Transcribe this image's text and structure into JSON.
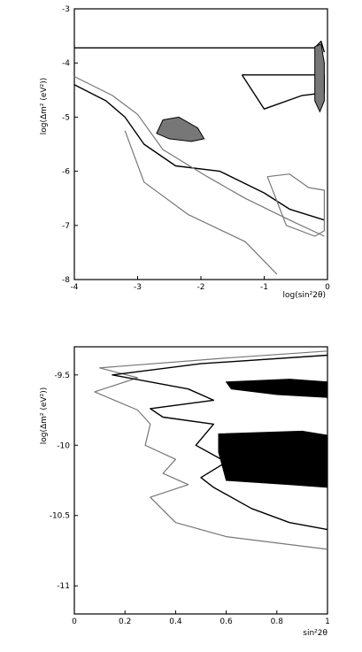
{
  "chart_data": [
    {
      "type": "contour",
      "xlabel": "log(sin²2θ)",
      "ylabel": "log(Δm² (eV²))",
      "xlim": [
        -4,
        0
      ],
      "ylim": [
        -8,
        -3
      ],
      "xticks": [
        -4,
        -3,
        -2,
        -1,
        0
      ],
      "yticks": [
        -3,
        -4,
        -5,
        -6,
        -7,
        -8
      ],
      "xtick_labels": [
        "-4",
        "-3",
        "-2",
        "-1",
        "0"
      ],
      "ytick_labels": [
        "-3",
        "-4",
        "-5",
        "-6",
        "-7",
        "-8"
      ],
      "grid": false,
      "contours": [
        {
          "kind": "line",
          "color": "#000000",
          "points": [
            [
              -4,
              -3.72
            ],
            [
              -0.2,
              -3.72
            ],
            [
              -0.1,
              -3.6
            ],
            [
              -0.05,
              -3.8
            ]
          ]
        },
        {
          "kind": "line",
          "color": "#000000",
          "points": [
            [
              -1.35,
              -4.22
            ],
            [
              -0.05,
              -4.22
            ],
            [
              -0.05,
              -4.55
            ],
            [
              -0.4,
              -4.6
            ],
            [
              -1,
              -4.85
            ],
            [
              -1.35,
              -4.22
            ]
          ]
        },
        {
          "kind": "line",
          "color": "#000000",
          "points": [
            [
              -4,
              -4.4
            ],
            [
              -3.5,
              -4.7
            ],
            [
              -3.2,
              -5.0
            ],
            [
              -2.9,
              -5.5
            ],
            [
              -2.4,
              -5.9
            ],
            [
              -1.7,
              -6.0
            ],
            [
              -1.0,
              -6.4
            ],
            [
              -0.6,
              -6.7
            ],
            [
              -0.05,
              -6.9
            ]
          ]
        },
        {
          "kind": "line",
          "color": "#777777",
          "points": [
            [
              -4,
              -4.25
            ],
            [
              -3.4,
              -4.6
            ],
            [
              -3.0,
              -4.95
            ],
            [
              -2.6,
              -5.6
            ],
            [
              -1.9,
              -6.1
            ],
            [
              -1.3,
              -6.5
            ],
            [
              -0.6,
              -6.9
            ],
            [
              -0.05,
              -7.2
            ]
          ]
        },
        {
          "kind": "line",
          "color": "#777777",
          "points": [
            [
              -3.2,
              -5.25
            ],
            [
              -2.9,
              -6.2
            ],
            [
              -2.2,
              -6.8
            ],
            [
              -1.3,
              -7.3
            ],
            [
              -0.8,
              -7.9
            ]
          ]
        },
        {
          "kind": "line",
          "color": "#777777",
          "points": [
            [
              -0.95,
              -6.1
            ],
            [
              -0.6,
              -6.05
            ],
            [
              -0.3,
              -6.3
            ],
            [
              -0.05,
              -6.35
            ],
            [
              -0.05,
              -7.1
            ],
            [
              -0.2,
              -7.2
            ],
            [
              -0.65,
              -7.0
            ],
            [
              -0.95,
              -6.1
            ]
          ]
        },
        {
          "kind": "fill",
          "color": "#777777",
          "points": [
            [
              -2.6,
              -5.05
            ],
            [
              -2.35,
              -5.0
            ],
            [
              -2.05,
              -5.2
            ],
            [
              -1.95,
              -5.4
            ],
            [
              -2.15,
              -5.45
            ],
            [
              -2.5,
              -5.4
            ],
            [
              -2.7,
              -5.3
            ],
            [
              -2.6,
              -5.05
            ]
          ]
        },
        {
          "kind": "fill",
          "color": "#777777",
          "points": [
            [
              -0.2,
              -3.7
            ],
            [
              -0.1,
              -3.65
            ],
            [
              -0.05,
              -4.0
            ],
            [
              -0.05,
              -4.7
            ],
            [
              -0.12,
              -4.9
            ],
            [
              -0.2,
              -4.7
            ],
            [
              -0.2,
              -3.7
            ]
          ]
        }
      ]
    },
    {
      "type": "contour",
      "xlabel": "sin²2θ",
      "ylabel": "log(Δm² (eV²))",
      "xlim": [
        0,
        1
      ],
      "ylim": [
        -11.2,
        -9.3
      ],
      "xticks": [
        0,
        0.2,
        0.4,
        0.6,
        0.8,
        1
      ],
      "yticks": [
        -9.5,
        -10,
        -10.5,
        -11
      ],
      "xtick_labels": [
        "0",
        "0.2",
        "0.4",
        "0.6",
        "0.8",
        "1"
      ],
      "ytick_labels": [
        "-9.5",
        "-10",
        "-10.5",
        "-11"
      ],
      "grid": false,
      "contours": [
        {
          "kind": "line",
          "color": "#777777",
          "points": [
            [
              1,
              -9.33
            ],
            [
              0.6,
              -9.38
            ],
            [
              0.1,
              -9.45
            ],
            [
              0.25,
              -9.52
            ],
            [
              0.08,
              -9.62
            ],
            [
              0.25,
              -9.75
            ],
            [
              0.3,
              -9.85
            ],
            [
              0.28,
              -10.0
            ],
            [
              0.4,
              -10.1
            ],
            [
              0.35,
              -10.2
            ],
            [
              0.45,
              -10.28
            ],
            [
              0.3,
              -10.37
            ],
            [
              0.4,
              -10.55
            ],
            [
              0.6,
              -10.65
            ],
            [
              1,
              -10.74
            ]
          ]
        },
        {
          "kind": "line",
          "color": "#000000",
          "points": [
            [
              1,
              -9.36
            ],
            [
              0.5,
              -9.42
            ],
            [
              0.15,
              -9.5
            ],
            [
              0.45,
              -9.6
            ],
            [
              0.55,
              -9.68
            ],
            [
              0.3,
              -9.74
            ],
            [
              0.35,
              -9.8
            ],
            [
              0.55,
              -9.85
            ],
            [
              0.48,
              -10.0
            ],
            [
              0.6,
              -10.12
            ],
            [
              0.5,
              -10.23
            ],
            [
              0.55,
              -10.3
            ],
            [
              0.7,
              -10.45
            ],
            [
              0.85,
              -10.55
            ],
            [
              1,
              -10.6
            ]
          ]
        },
        {
          "kind": "fill",
          "color": "#000000",
          "points": [
            [
              0.6,
              -9.55
            ],
            [
              0.85,
              -9.53
            ],
            [
              1,
              -9.55
            ],
            [
              1,
              -9.66
            ],
            [
              0.8,
              -9.64
            ],
            [
              0.62,
              -9.6
            ],
            [
              0.6,
              -9.55
            ]
          ]
        },
        {
          "kind": "fill",
          "color": "#000000",
          "points": [
            [
              0.57,
              -9.92
            ],
            [
              0.9,
              -9.9
            ],
            [
              1,
              -9.93
            ],
            [
              1,
              -10.3
            ],
            [
              0.85,
              -10.28
            ],
            [
              0.6,
              -10.25
            ],
            [
              0.57,
              -10.05
            ],
            [
              0.57,
              -9.92
            ]
          ]
        }
      ]
    }
  ]
}
